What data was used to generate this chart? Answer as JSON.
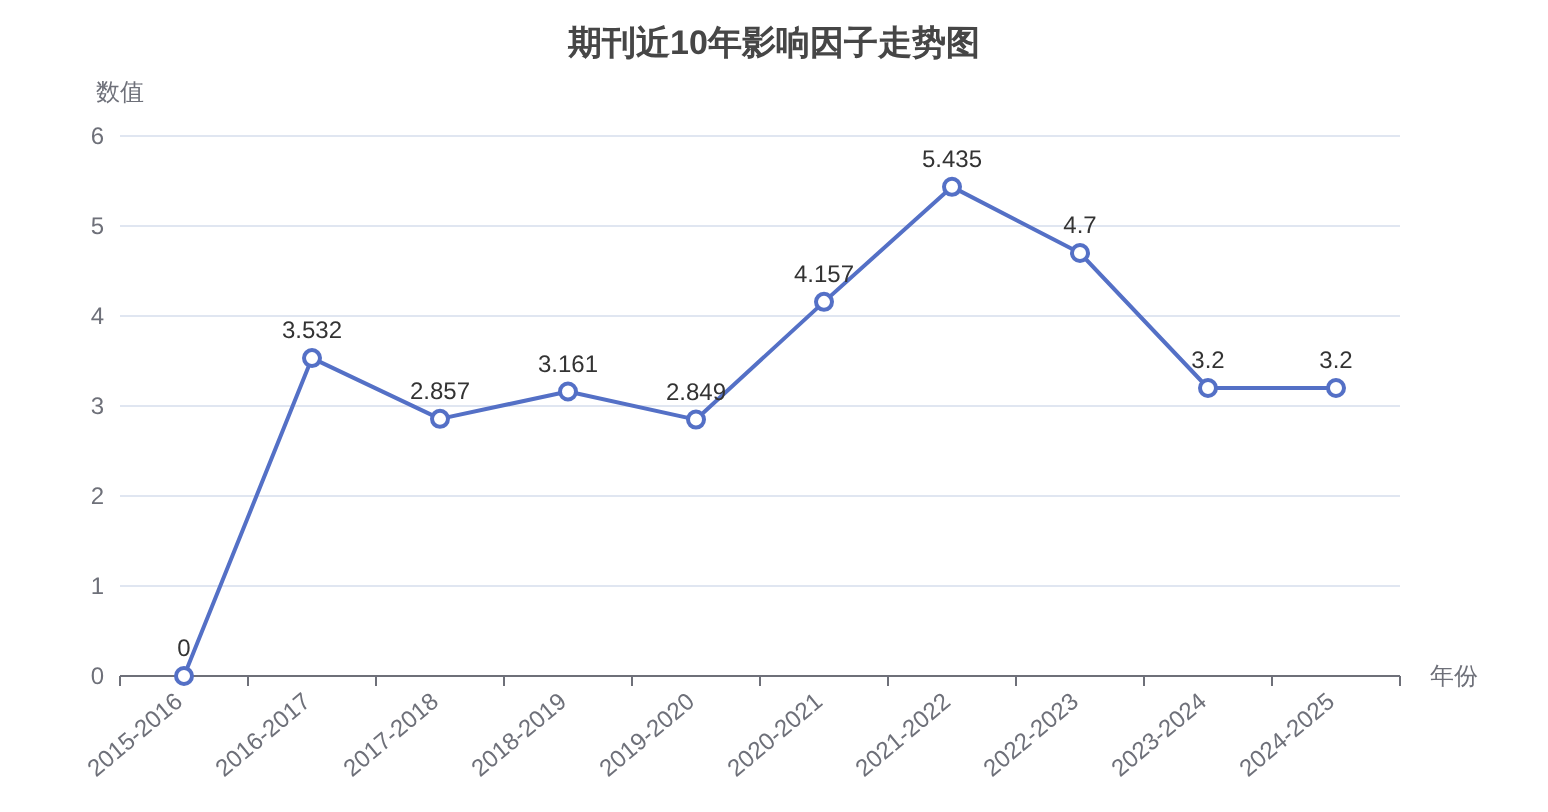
{
  "chart_data": {
    "type": "line",
    "title": "期刊近10年影响因子走势图",
    "xlabel": "年份",
    "ylabel": "数值",
    "categories": [
      "2015-2016",
      "2016-2017",
      "2017-2018",
      "2018-2019",
      "2019-2020",
      "2020-2021",
      "2021-2022",
      "2022-2023",
      "2023-2024",
      "2024-2025"
    ],
    "series": [
      {
        "color": "#5470c6",
        "values": [
          0,
          3.532,
          2.857,
          3.161,
          2.849,
          4.157,
          5.435,
          4.7,
          3.2,
          3.2
        ]
      }
    ],
    "ylim": [
      0,
      6
    ],
    "yticks": [
      0,
      1,
      2,
      3,
      4,
      5,
      6
    ],
    "grid": "y",
    "data_labels": true,
    "marker": "circle",
    "line_style": "solid"
  }
}
